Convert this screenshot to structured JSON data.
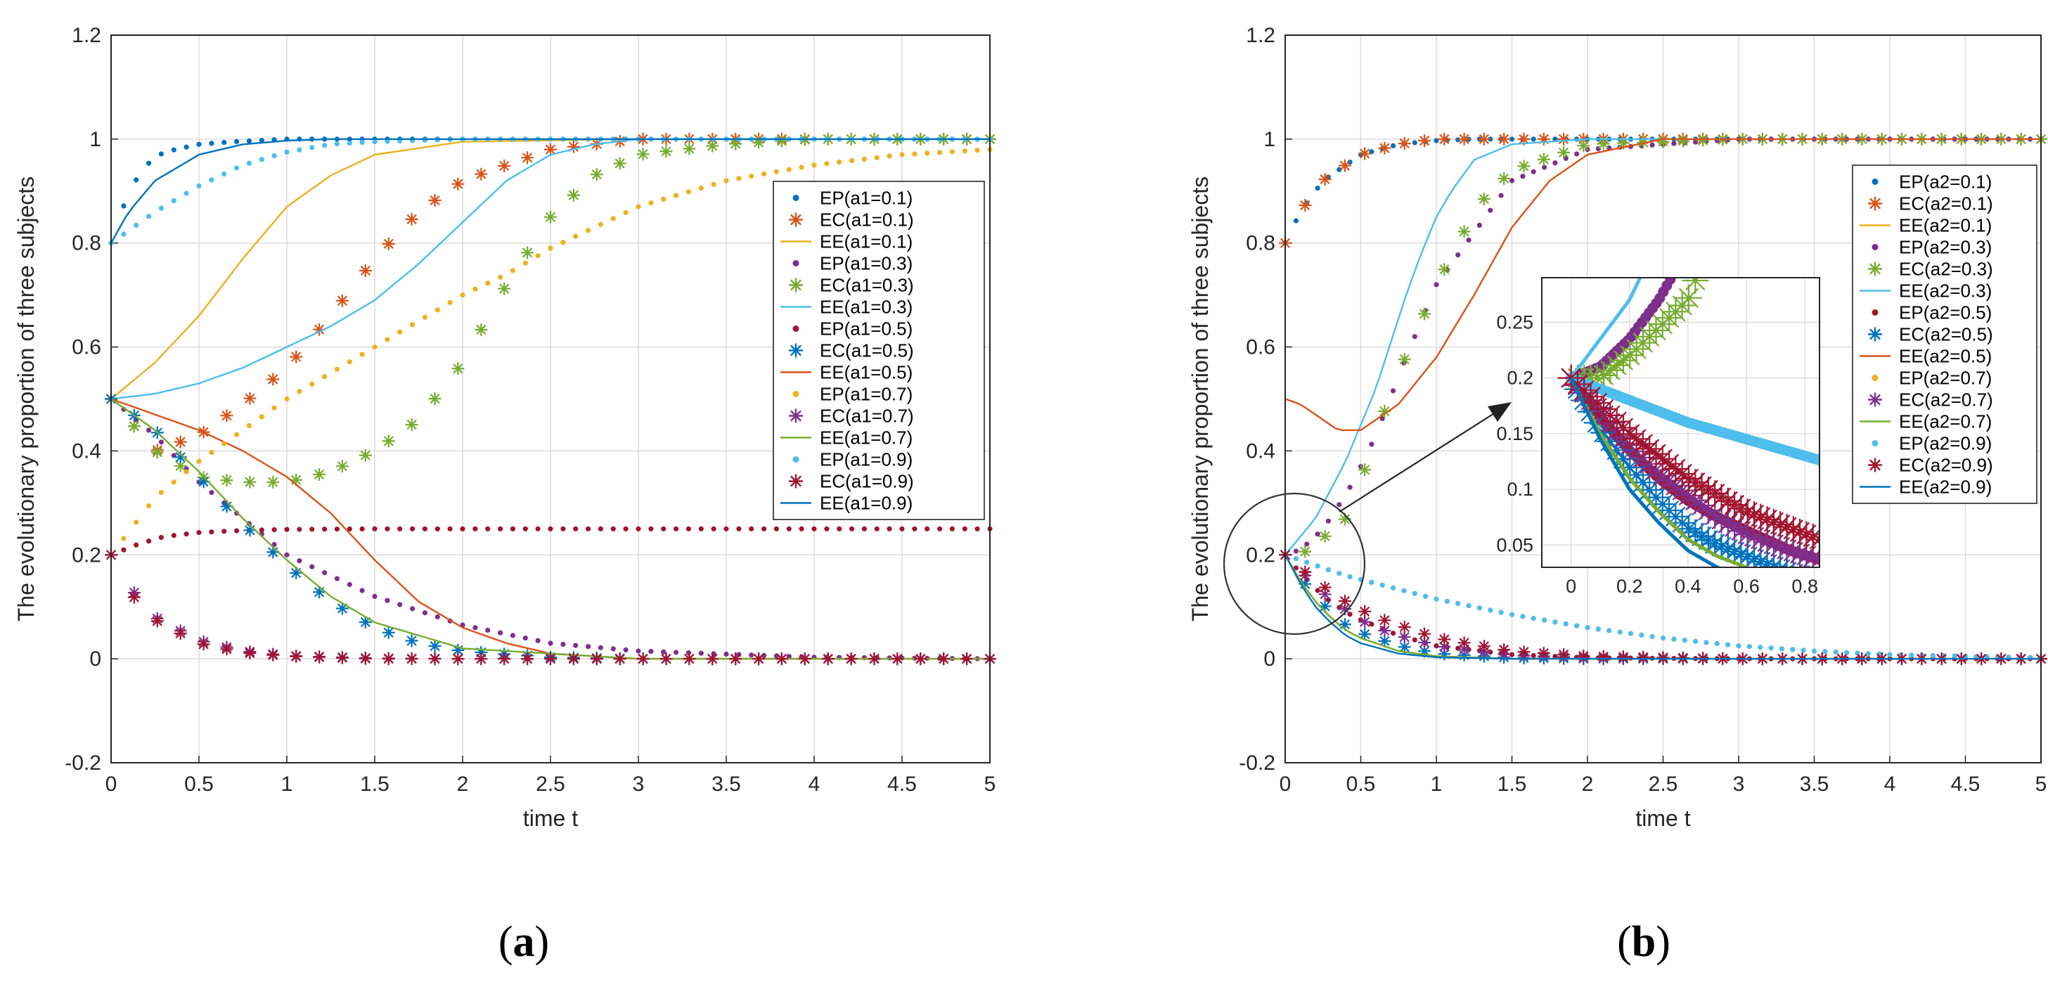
{
  "chart_data": [
    {
      "type": "line",
      "panel": "a",
      "caption": "(a)",
      "caption_letter": "a",
      "xlabel": "time t",
      "ylabel": "The evolutionary proportion of three subjects",
      "xlim": [
        0,
        5
      ],
      "ylim": [
        -0.2,
        1.2
      ],
      "xticks": [
        "0",
        "0.5",
        "1",
        "1.5",
        "2",
        "2.5",
        "3",
        "3.5",
        "4",
        "4.5",
        "5"
      ],
      "yticks": [
        "-0.2",
        "0",
        "0.2",
        "0.4",
        "0.6",
        "0.8",
        "1",
        "1.2"
      ],
      "grid": true,
      "legend_position": "center-right",
      "series": [
        {
          "name": "EP(a1=0.1)",
          "style": "dot",
          "color": "#0072BD",
          "x": [
            0,
            0.1,
            0.2,
            0.3,
            0.5,
            0.7,
            1,
            1.5,
            2,
            3,
            4,
            5
          ],
          "y": [
            0.8,
            0.9,
            0.95,
            0.975,
            0.99,
            0.995,
            1,
            1,
            1,
            1,
            1,
            1
          ]
        },
        {
          "name": "EC(a1=0.1)",
          "style": "star",
          "color": "#D95319",
          "x": [
            0,
            0.25,
            0.5,
            0.75,
            1,
            1.25,
            1.5,
            1.75,
            2,
            2.5,
            3,
            4,
            5
          ],
          "y": [
            0.5,
            0.4,
            0.43,
            0.49,
            0.56,
            0.66,
            0.77,
            0.86,
            0.92,
            0.98,
            1,
            1,
            1
          ]
        },
        {
          "name": "EE(a1=0.1)",
          "style": "line",
          "color": "#EDB120",
          "x": [
            0,
            0.25,
            0.5,
            0.75,
            1,
            1.25,
            1.5,
            2,
            3,
            5
          ],
          "y": [
            0.5,
            0.57,
            0.66,
            0.77,
            0.87,
            0.93,
            0.97,
            0.995,
            1,
            1
          ]
        },
        {
          "name": "EP(a1=0.3)",
          "style": "dot",
          "color": "#7E2F8E",
          "x": [
            0,
            0.25,
            0.5,
            0.75,
            1,
            1.5,
            2,
            2.5,
            3,
            4,
            5
          ],
          "y": [
            0.5,
            0.43,
            0.34,
            0.27,
            0.2,
            0.12,
            0.065,
            0.03,
            0.015,
            0.003,
            0
          ]
        },
        {
          "name": "EC(a1=0.3)",
          "style": "star",
          "color": "#77AC30",
          "x": [
            0,
            0.25,
            0.5,
            0.75,
            1,
            1.25,
            1.5,
            1.75,
            2,
            2.25,
            2.5,
            2.75,
            3,
            3.5,
            4,
            5
          ],
          "y": [
            0.5,
            0.4,
            0.35,
            0.34,
            0.34,
            0.36,
            0.4,
            0.46,
            0.57,
            0.72,
            0.85,
            0.93,
            0.97,
            0.99,
            1,
            1
          ]
        },
        {
          "name": "EE(a1=0.3)",
          "style": "line",
          "color": "#4DBEEE",
          "x": [
            0,
            0.25,
            0.5,
            0.75,
            1,
            1.25,
            1.5,
            1.75,
            2,
            2.25,
            2.5,
            2.75,
            3,
            3.5,
            5
          ],
          "y": [
            0.5,
            0.51,
            0.53,
            0.56,
            0.6,
            0.64,
            0.69,
            0.76,
            0.84,
            0.92,
            0.97,
            0.99,
            1,
            1,
            1
          ]
        },
        {
          "name": "EP(a1=0.5)",
          "style": "dot",
          "color": "#A2142F",
          "x": [
            0,
            0.15,
            0.3,
            0.5,
            0.75,
            1,
            1.5,
            2,
            3,
            4,
            5
          ],
          "y": [
            0.2,
            0.22,
            0.235,
            0.243,
            0.247,
            0.249,
            0.25,
            0.25,
            0.25,
            0.25,
            0.25
          ]
        },
        {
          "name": "EC(a1=0.5)",
          "style": "star",
          "color": "#0072BD",
          "x": [
            0,
            0.25,
            0.5,
            0.75,
            1,
            1.25,
            1.5,
            1.75,
            2,
            2.5,
            3,
            4,
            5
          ],
          "y": [
            0.5,
            0.44,
            0.35,
            0.26,
            0.18,
            0.11,
            0.06,
            0.03,
            0.015,
            0.003,
            0,
            0,
            0
          ]
        },
        {
          "name": "EE(a1=0.5)",
          "style": "line",
          "color": "#D95319",
          "x": [
            0,
            0.25,
            0.5,
            0.75,
            1,
            1.25,
            1.5,
            1.75,
            2,
            2.25,
            2.5,
            3,
            4,
            5
          ],
          "y": [
            0.5,
            0.47,
            0.44,
            0.4,
            0.35,
            0.28,
            0.19,
            0.11,
            0.06,
            0.03,
            0.01,
            0,
            0,
            0
          ]
        },
        {
          "name": "EP(a1=0.7)",
          "style": "dot",
          "color": "#EDB120",
          "x": [
            0,
            0.25,
            0.5,
            0.75,
            1,
            1.25,
            1.5,
            1.75,
            2,
            2.25,
            2.5,
            2.75,
            3,
            3.5,
            4,
            4.5,
            5
          ],
          "y": [
            0.2,
            0.31,
            0.38,
            0.44,
            0.5,
            0.55,
            0.6,
            0.65,
            0.7,
            0.74,
            0.79,
            0.83,
            0.87,
            0.92,
            0.95,
            0.97,
            0.98
          ]
        },
        {
          "name": "EC(a1=0.7)",
          "style": "star",
          "color": "#7E2F8E",
          "x": [
            0,
            0.1,
            0.25,
            0.5,
            0.75,
            1,
            1.5,
            2,
            3,
            5
          ],
          "y": [
            0.2,
            0.14,
            0.08,
            0.035,
            0.015,
            0.006,
            0.001,
            0,
            0,
            0
          ]
        },
        {
          "name": "EE(a1=0.7)",
          "style": "line",
          "color": "#77AC30",
          "x": [
            0,
            0.25,
            0.5,
            0.75,
            1,
            1.25,
            1.5,
            2,
            3,
            5
          ],
          "y": [
            0.5,
            0.44,
            0.36,
            0.27,
            0.19,
            0.12,
            0.07,
            0.02,
            0,
            0
          ]
        },
        {
          "name": "EP(a1=0.9)",
          "style": "dot",
          "color": "#4DBEEE",
          "x": [
            0,
            0.25,
            0.5,
            0.75,
            1,
            1.25,
            1.5,
            2,
            3,
            5
          ],
          "y": [
            0.8,
            0.86,
            0.91,
            0.95,
            0.975,
            0.99,
            0.995,
            1,
            1,
            1
          ]
        },
        {
          "name": "EC(a1=0.9)",
          "style": "star",
          "color": "#A2142F",
          "x": [
            0,
            0.1,
            0.25,
            0.5,
            0.75,
            1,
            1.5,
            2,
            3,
            5
          ],
          "y": [
            0.2,
            0.13,
            0.075,
            0.03,
            0.012,
            0.005,
            0,
            0,
            0,
            0
          ]
        },
        {
          "name": "EE(a1=0.9)",
          "style": "line",
          "color": "#0072BD",
          "x": [
            0,
            0.1,
            0.25,
            0.5,
            0.75,
            1,
            1.25,
            1.5,
            2,
            3,
            5
          ],
          "y": [
            0.8,
            0.86,
            0.92,
            0.97,
            0.99,
            0.997,
            1,
            1,
            1,
            1,
            1
          ]
        }
      ]
    },
    {
      "type": "line",
      "panel": "b",
      "caption": "(b)",
      "caption_letter": "b",
      "xlabel": "time t",
      "ylabel": "The evolutionary proportion of three subjects",
      "xlim": [
        0,
        5
      ],
      "ylim": [
        -0.2,
        1.2
      ],
      "xticks": [
        "0",
        "0.5",
        "1",
        "1.5",
        "2",
        "2.5",
        "3",
        "3.5",
        "4",
        "4.5",
        "5"
      ],
      "yticks": [
        "-0.2",
        "0",
        "0.2",
        "0.4",
        "0.6",
        "0.8",
        "1",
        "1.2"
      ],
      "grid": true,
      "legend_position": "right",
      "series": [
        {
          "name": "EP(a2=0.1)",
          "style": "dot",
          "color": "#0072BD",
          "x": [
            0,
            0.1,
            0.25,
            0.5,
            0.75,
            1,
            1.25,
            1.5,
            2,
            3,
            5
          ],
          "y": [
            0.8,
            0.86,
            0.92,
            0.97,
            0.99,
            0.997,
            1,
            1,
            1,
            1,
            1
          ]
        },
        {
          "name": "EC(a2=0.1)",
          "style": "star",
          "color": "#D95319",
          "x": [
            0,
            0.1,
            0.25,
            0.5,
            0.75,
            1,
            1.5,
            2,
            3,
            5
          ],
          "y": [
            0.8,
            0.86,
            0.92,
            0.97,
            0.99,
            1,
            1,
            1,
            1,
            1
          ]
        },
        {
          "name": "EE(a2=0.1)",
          "style": "line",
          "color": "#EDB120",
          "x": [
            0,
            0.1,
            0.2,
            0.3,
            0.4,
            0.5,
            0.75,
            1,
            1.5,
            2,
            3,
            5
          ],
          "y": [
            0.2,
            0.15,
            0.11,
            0.08,
            0.055,
            0.04,
            0.015,
            0.005,
            0,
            0,
            0,
            0
          ]
        },
        {
          "name": "EP(a2=0.3)",
          "style": "dot",
          "color": "#7E2F8E",
          "x": [
            0,
            0.1,
            0.2,
            0.3,
            0.45,
            0.6,
            0.8,
            1,
            1.5,
            2,
            3,
            5
          ],
          "y": [
            0.2,
            0.21,
            0.235,
            0.27,
            0.34,
            0.43,
            0.58,
            0.72,
            0.92,
            0.98,
            1,
            1
          ]
        },
        {
          "name": "EC(a2=0.3)",
          "style": "star",
          "color": "#77AC30",
          "x": [
            0,
            0.1,
            0.2,
            0.3,
            0.4,
            0.5,
            0.6,
            0.75,
            0.9,
            1.1,
            1.3,
            1.5,
            2,
            3,
            5
          ],
          "y": [
            0.2,
            0.2,
            0.22,
            0.245,
            0.27,
            0.34,
            0.43,
            0.55,
            0.65,
            0.78,
            0.88,
            0.94,
            0.99,
            1,
            1
          ]
        },
        {
          "name": "EE(a2=0.3)",
          "style": "line",
          "color": "#4DBEEE",
          "x": [
            0,
            0.2,
            0.4,
            0.6,
            0.8,
            0.9,
            1,
            1.1,
            1.25,
            1.5,
            2,
            3,
            5
          ],
          "y": [
            0.2,
            0.27,
            0.38,
            0.52,
            0.7,
            0.78,
            0.85,
            0.9,
            0.96,
            0.99,
            1,
            1,
            1
          ]
        },
        {
          "name": "EP(a2=0.5)",
          "style": "dot",
          "color": "#A2142F",
          "x": [
            0,
            0.1,
            0.2,
            0.3,
            0.4,
            0.5,
            0.75,
            1,
            1.5,
            2,
            3,
            5
          ],
          "y": [
            0.2,
            0.165,
            0.135,
            0.11,
            0.09,
            0.075,
            0.045,
            0.025,
            0.008,
            0.002,
            0,
            0
          ]
        },
        {
          "name": "EC(a2=0.5)",
          "style": "star",
          "color": "#0072BD",
          "x": [
            0,
            0.1,
            0.2,
            0.3,
            0.4,
            0.5,
            0.75,
            1,
            1.5,
            2,
            3,
            5
          ],
          "y": [
            0.2,
            0.155,
            0.12,
            0.09,
            0.065,
            0.05,
            0.025,
            0.01,
            0.002,
            0,
            0,
            0
          ]
        },
        {
          "name": "EE(a2=0.5)",
          "style": "line",
          "color": "#D95319",
          "x": [
            0,
            0.1,
            0.2,
            0.35,
            0.5,
            0.75,
            1,
            1.25,
            1.5,
            1.75,
            2,
            2.5,
            3,
            5
          ],
          "y": [
            0.5,
            0.49,
            0.47,
            0.44,
            0.44,
            0.49,
            0.58,
            0.7,
            0.83,
            0.92,
            0.97,
            1,
            1,
            1
          ]
        },
        {
          "name": "EP(a2=0.7)",
          "style": "dot",
          "color": "#EDB120",
          "x": [
            0,
            0.1,
            0.2,
            0.4,
            0.6,
            0.8,
            1,
            1.5,
            2,
            2.5,
            3,
            3.5,
            4,
            5
          ],
          "y": [
            0.2,
            0.19,
            0.18,
            0.16,
            0.145,
            0.13,
            0.115,
            0.085,
            0.06,
            0.04,
            0.025,
            0.015,
            0.008,
            0.002
          ]
        },
        {
          "name": "EC(a2=0.7)",
          "style": "star",
          "color": "#7E2F8E",
          "x": [
            0,
            0.1,
            0.2,
            0.3,
            0.4,
            0.5,
            0.6,
            0.75,
            1,
            1.5,
            2,
            3,
            5
          ],
          "y": [
            0.2,
            0.17,
            0.14,
            0.115,
            0.095,
            0.075,
            0.06,
            0.045,
            0.025,
            0.007,
            0.002,
            0,
            0
          ]
        },
        {
          "name": "EE(a2=0.7)",
          "style": "line",
          "color": "#77AC30",
          "x": [
            0,
            0.1,
            0.2,
            0.3,
            0.4,
            0.5,
            0.75,
            1,
            1.5,
            2,
            3,
            5
          ],
          "y": [
            0.2,
            0.15,
            0.11,
            0.08,
            0.055,
            0.04,
            0.015,
            0.005,
            0,
            0,
            0,
            0
          ]
        },
        {
          "name": "EP(a2=0.9)",
          "style": "dot",
          "color": "#4DBEEE",
          "x": [
            0,
            0.1,
            0.2,
            0.4,
            0.6,
            0.8,
            1,
            1.5,
            2,
            2.5,
            3,
            3.5,
            4,
            5
          ],
          "y": [
            0.2,
            0.19,
            0.18,
            0.16,
            0.145,
            0.13,
            0.115,
            0.085,
            0.06,
            0.04,
            0.025,
            0.015,
            0.008,
            0.002
          ]
        },
        {
          "name": "EC(a2=0.9)",
          "style": "star",
          "color": "#A2142F",
          "x": [
            0,
            0.1,
            0.2,
            0.3,
            0.4,
            0.5,
            0.6,
            0.75,
            1,
            1.5,
            2,
            3,
            5
          ],
          "y": [
            0.2,
            0.175,
            0.15,
            0.13,
            0.11,
            0.095,
            0.08,
            0.065,
            0.04,
            0.015,
            0.005,
            0,
            0
          ]
        },
        {
          "name": "EE(a2=0.9)",
          "style": "line",
          "color": "#0072BD",
          "x": [
            0,
            0.1,
            0.2,
            0.3,
            0.4,
            0.5,
            0.75,
            1,
            1.5,
            2,
            3,
            5
          ],
          "y": [
            0.2,
            0.145,
            0.1,
            0.07,
            0.045,
            0.03,
            0.01,
            0.003,
            0,
            0,
            0,
            0
          ]
        }
      ],
      "inset": {
        "xlim": [
          -0.1,
          0.85
        ],
        "ylim": [
          0.03,
          0.29
        ],
        "xticks": [
          "0",
          "0.2",
          "0.4",
          "0.6",
          "0.8"
        ],
        "yticks": [
          "0.05",
          "0.1",
          "0.15",
          "0.2",
          "0.25"
        ]
      }
    }
  ]
}
